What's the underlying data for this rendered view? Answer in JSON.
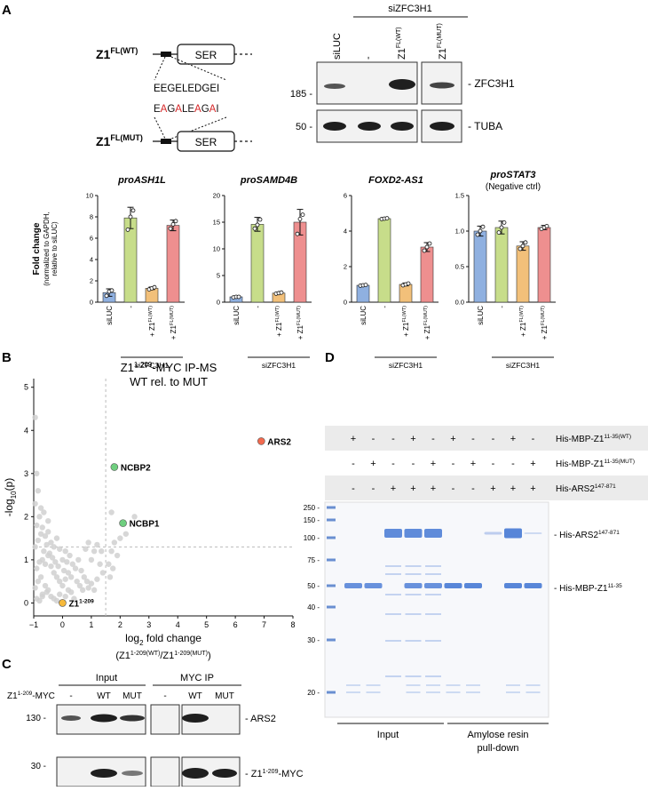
{
  "panel_labels": {
    "a": "A",
    "b": "B",
    "c": "C",
    "d": "D"
  },
  "panelA": {
    "construct": {
      "wt_label": "Z1",
      "wt_sup": "FL(WT)",
      "mut_label": "Z1",
      "mut_sup": "FL(MUT)",
      "domain": "SER",
      "wt_seq": [
        "E",
        "E",
        "G",
        "E",
        "L",
        "E",
        "D",
        "G",
        "E",
        "I"
      ],
      "mut_seq": [
        "E",
        "A",
        "G",
        "A",
        "L",
        "E",
        "A",
        "G",
        "A",
        "I"
      ],
      "mut_seq_colors": [
        "#111111",
        "#d62728",
        "#111111",
        "#d62728",
        "#111111",
        "#111111",
        "#d62728",
        "#111111",
        "#d62728",
        "#111111"
      ]
    },
    "blot": {
      "group_label": "siZFC3H1",
      "lanes": [
        {
          "base": "siLUC",
          "sup": ""
        },
        {
          "base": "-",
          "sup": ""
        },
        {
          "base": "Z1",
          "sup": "FL(WT)"
        },
        {
          "base": "Z1",
          "sup": "FL(MUT)"
        }
      ],
      "rows": [
        {
          "marker": "185 -",
          "label": "- ZFC3H1"
        },
        {
          "marker": "50 -",
          "label": "- TUBA"
        }
      ]
    }
  },
  "colors": {
    "siLUC": "#8fb0e0",
    "minus": "#c7dd8a",
    "wt": "#f2c07a",
    "mut": "#ee8f8f",
    "grey_dot": "#d0d0d0",
    "ars2": "#f26a4f",
    "ncbp": "#6fcf7f",
    "z1": "#f6b93b"
  },
  "chart_data": [
    {
      "type": "bar",
      "title": "proASH1L",
      "title_italic": true,
      "categories": [
        "siLUC",
        "-",
        "+ Z1FL(WT)",
        "+ Z1FL(MUT)"
      ],
      "values": [
        0.9,
        7.9,
        1.3,
        7.2
      ],
      "errors": [
        0.35,
        1.0,
        0.12,
        0.5
      ],
      "points": [
        [
          0.6,
          1.0,
          1.1
        ],
        [
          6.8,
          8.0,
          8.6
        ],
        [
          1.2,
          1.3,
          1.4
        ],
        [
          6.9,
          7.3,
          7.6
        ]
      ],
      "ylim": [
        0,
        10
      ],
      "yticks": [
        0,
        2,
        4,
        6,
        8,
        10
      ],
      "ylabel": "Fold change",
      "ylabel_sub": [
        "(normalized to GAPDH,",
        "relative to siLUC)"
      ],
      "group_label": "siZFC3H1"
    },
    {
      "type": "bar",
      "title": "proSAMD4B",
      "title_italic": true,
      "categories": [
        "siLUC",
        "-",
        "+ Z1FL(WT)",
        "+ Z1FL(MUT)"
      ],
      "values": [
        1.0,
        14.6,
        1.7,
        15.0
      ],
      "errors": [
        0.1,
        1.3,
        0.15,
        2.4
      ],
      "points": [
        [
          0.9,
          1.0,
          1.0
        ],
        [
          13.8,
          14.5,
          15.5
        ],
        [
          1.6,
          1.7,
          1.8
        ],
        [
          12.8,
          15.6,
          16.4
        ]
      ],
      "ylim": [
        0,
        20
      ],
      "yticks": [
        0,
        5,
        10,
        15,
        20
      ],
      "group_label": "siZFC3H1"
    },
    {
      "type": "bar",
      "title": "FOXD2-AS1",
      "title_italic": true,
      "categories": [
        "siLUC",
        "-",
        "+ Z1FL(WT)",
        "+ Z1FL(MUT)"
      ],
      "values": [
        0.95,
        4.7,
        1.0,
        3.1
      ],
      "errors": [
        0.05,
        0.05,
        0.08,
        0.25
      ],
      "points": [
        [
          0.93,
          0.95,
          0.97
        ],
        [
          4.68,
          4.7,
          4.72
        ],
        [
          0.95,
          1.0,
          1.05
        ],
        [
          2.9,
          3.1,
          3.3
        ]
      ],
      "ylim": [
        0,
        6
      ],
      "yticks": [
        0,
        2,
        4,
        6
      ],
      "group_label": "siZFC3H1"
    },
    {
      "type": "bar",
      "title": "proSTAT3",
      "title_italic": true,
      "subtitle": "(Negative ctrl)",
      "categories": [
        "siLUC",
        "-",
        "+ Z1FL(WT)",
        "+ Z1FL(MUT)"
      ],
      "values": [
        1.0,
        1.05,
        0.79,
        1.05
      ],
      "errors": [
        0.07,
        0.09,
        0.06,
        0.03
      ],
      "points": [
        [
          0.95,
          1.0,
          1.06
        ],
        [
          0.98,
          1.05,
          1.12
        ],
        [
          0.75,
          0.79,
          0.84
        ],
        [
          1.03,
          1.05,
          1.07
        ]
      ],
      "ylim": [
        0,
        1.5
      ],
      "yticks": [
        0.0,
        0.5,
        1.0,
        1.5
      ],
      "group_label": "siZFC3H1"
    },
    {
      "type": "scatter",
      "title": [
        "Z1",
        "1-209",
        "-MYC IP-MS",
        "WT rel. to MUT"
      ],
      "xlabel": {
        "pre": "log",
        "sub": "2",
        "post": " fold change"
      },
      "xlabel2": {
        "a": "(Z1",
        "asup": "1-209(WT)",
        "b": "/Z1",
        "bsup": "1-209(MUT)",
        "c": ")"
      },
      "ylabel": {
        "pre": "-log",
        "sub": "10",
        "post": "(p)"
      },
      "xlim": [
        -1,
        8
      ],
      "ylim": [
        -0.3,
        5.2
      ],
      "xticks": [
        -1,
        0,
        1,
        2,
        3,
        4,
        5,
        6,
        7,
        8
      ],
      "yticks": [
        0,
        1,
        2,
        3,
        4,
        5
      ],
      "threshold_x": 1.5,
      "threshold_y": 1.3,
      "highlight": [
        {
          "name": "ARS2",
          "x": 6.9,
          "y": 3.75,
          "color": "#f26a4f",
          "sup": ""
        },
        {
          "name": "NCBP2",
          "x": 1.8,
          "y": 3.15,
          "color": "#6fcf7f",
          "sup": ""
        },
        {
          "name": "NCBP1",
          "x": 2.1,
          "y": 1.85,
          "color": "#6fcf7f",
          "sup": ""
        },
        {
          "name": "Z1",
          "x": 0.0,
          "y": 0.0,
          "color": "#f6b93b",
          "sup": "1-209"
        }
      ],
      "background_points": [
        [
          -0.9,
          0.1
        ],
        [
          -0.8,
          0.05
        ],
        [
          -0.7,
          0.2
        ],
        [
          -0.95,
          0.35
        ],
        [
          -0.85,
          0.5
        ],
        [
          -0.75,
          0.6
        ],
        [
          -0.6,
          0.4
        ],
        [
          -0.5,
          0.3
        ],
        [
          -0.4,
          0.15
        ],
        [
          -0.3,
          0.1
        ],
        [
          -0.2,
          0.05
        ],
        [
          -0.1,
          0.2
        ],
        [
          0.1,
          0.15
        ],
        [
          0.2,
          0.3
        ],
        [
          0.3,
          0.25
        ],
        [
          0.4,
          0.1
        ],
        [
          -0.9,
          0.8
        ],
        [
          -0.8,
          0.95
        ],
        [
          -0.7,
          1.0
        ],
        [
          -0.6,
          0.9
        ],
        [
          -0.5,
          1.1
        ],
        [
          -0.4,
          0.85
        ],
        [
          -0.3,
          0.7
        ],
        [
          -0.2,
          0.6
        ],
        [
          -0.1,
          0.5
        ],
        [
          0.0,
          0.4
        ],
        [
          0.1,
          0.55
        ],
        [
          0.2,
          0.7
        ],
        [
          0.3,
          0.6
        ],
        [
          0.5,
          0.5
        ],
        [
          0.6,
          0.4
        ],
        [
          0.7,
          0.3
        ],
        [
          -0.95,
          1.3
        ],
        [
          -0.85,
          1.45
        ],
        [
          -0.75,
          1.6
        ],
        [
          -0.65,
          1.2
        ],
        [
          -0.55,
          1.35
        ],
        [
          -0.45,
          1.15
        ],
        [
          -0.35,
          1.05
        ],
        [
          -0.25,
          0.95
        ],
        [
          -0.15,
          0.85
        ],
        [
          0.05,
          0.75
        ],
        [
          0.15,
          0.95
        ],
        [
          0.25,
          1.1
        ],
        [
          0.35,
          0.9
        ],
        [
          0.45,
          0.8
        ],
        [
          -0.9,
          1.8
        ],
        [
          -0.8,
          2.0
        ],
        [
          -0.7,
          1.75
        ],
        [
          -0.6,
          1.55
        ],
        [
          -0.5,
          1.65
        ],
        [
          -0.4,
          1.4
        ],
        [
          -0.3,
          1.3
        ],
        [
          -0.95,
          2.3
        ],
        [
          -0.85,
          2.6
        ],
        [
          -0.9,
          3.0
        ],
        [
          -0.75,
          2.2
        ],
        [
          -0.95,
          4.3
        ],
        [
          -0.7,
          0.15
        ],
        [
          -0.55,
          0.25
        ],
        [
          0.55,
          1.0
        ],
        [
          0.65,
          0.75
        ],
        [
          0.75,
          0.6
        ],
        [
          0.85,
          0.5
        ],
        [
          0.9,
          0.35
        ],
        [
          1.0,
          0.45
        ],
        [
          1.1,
          0.3
        ],
        [
          1.2,
          0.55
        ],
        [
          1.0,
          1.0
        ],
        [
          1.1,
          1.2
        ],
        [
          1.2,
          1.35
        ],
        [
          1.35,
          1.2
        ],
        [
          1.3,
          0.9
        ],
        [
          1.4,
          0.7
        ],
        [
          0.8,
          1.25
        ],
        [
          0.9,
          1.4
        ],
        [
          1.7,
          1.2
        ],
        [
          1.8,
          1.4
        ],
        [
          1.9,
          1.1
        ],
        [
          2.0,
          1.5
        ],
        [
          2.2,
          1.6
        ],
        [
          2.5,
          2.0
        ],
        [
          1.7,
          2.1
        ],
        [
          1.6,
          0.9
        ],
        [
          1.65,
          0.6
        ],
        [
          1.75,
          0.8
        ],
        [
          -0.2,
          1.5
        ],
        [
          -0.1,
          1.25
        ],
        [
          0.0,
          1.0
        ],
        [
          0.1,
          1.2
        ],
        [
          -0.65,
          2.1
        ],
        [
          -0.5,
          1.9
        ]
      ]
    }
  ],
  "panelC": {
    "row_label": {
      "base": "Z1",
      "sup": "1-209",
      "post": "-MYC"
    },
    "groups": [
      "Input",
      "MYC IP"
    ],
    "lanes": [
      "-",
      "WT",
      "MUT",
      "-",
      "WT",
      "MUT"
    ],
    "rows": [
      {
        "marker": "130 -",
        "label": "- ARS2"
      },
      {
        "marker": "30 -",
        "label": "- Z1",
        "label_sup": "1-209",
        "label_post": "-MYC"
      }
    ]
  },
  "panelD": {
    "conditions": [
      {
        "label": "His-MBP-Z1",
        "sup": "11-35(WT)",
        "signs": [
          "+",
          "-",
          "-",
          "+",
          "-",
          "+",
          "-",
          "-",
          "+",
          "-"
        ]
      },
      {
        "label": "His-MBP-Z1",
        "sup": "11-35(MUT)",
        "signs": [
          "-",
          "+",
          "-",
          "-",
          "+",
          "-",
          "+",
          "-",
          "-",
          "+"
        ]
      },
      {
        "label": "His-ARS2",
        "sup": "147-871",
        "signs": [
          "-",
          "-",
          "+",
          "+",
          "+",
          "-",
          "-",
          "+",
          "+",
          "+"
        ]
      }
    ],
    "ladder": [
      "250 -",
      "150 -",
      "100 -",
      "75 -",
      "50 -",
      "40 -",
      "30 -",
      "20 -"
    ],
    "band_labels": [
      {
        "label": "- His-ARS2",
        "sup": "147-871"
      },
      {
        "label": "- His-MBP-Z1",
        "sup": "11-35"
      }
    ],
    "groups": [
      "Input",
      "Amylose resin",
      "pull-down"
    ]
  }
}
